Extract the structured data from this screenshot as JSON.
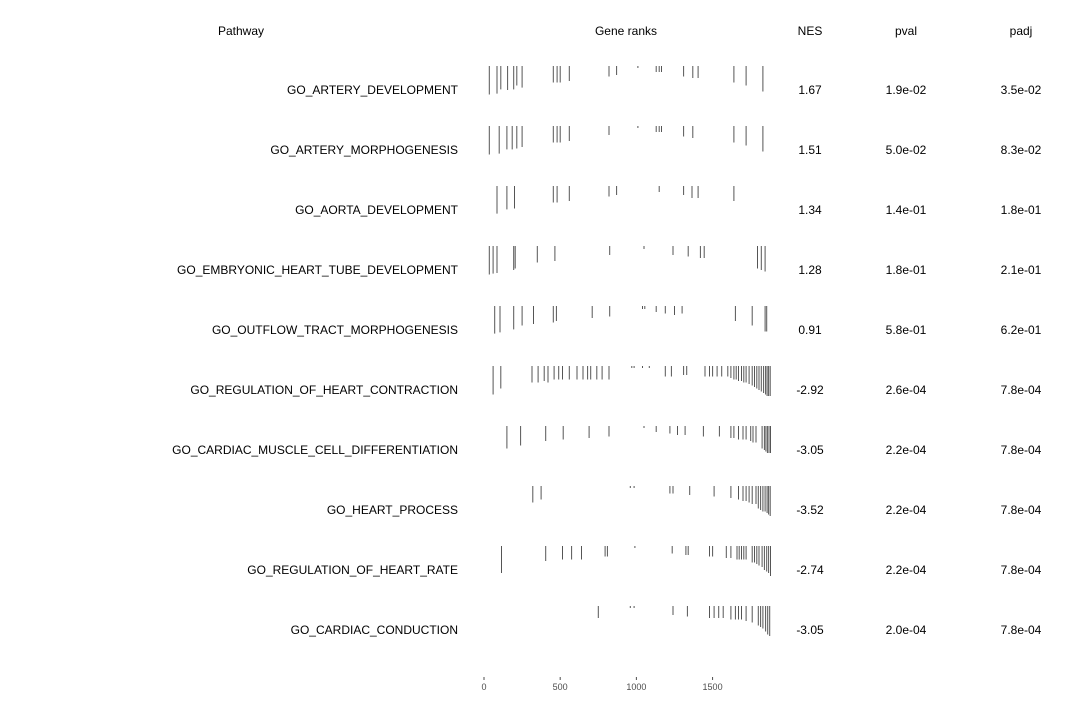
{
  "headers": {
    "pathway": "Pathway",
    "gene_ranks": "Gene ranks",
    "nes": "NES",
    "pval": "pval",
    "padj": "padj"
  },
  "chart_data": {
    "type": "table",
    "xlim": [
      0,
      1890
    ],
    "x_ticks": [
      0,
      500,
      1000,
      1500
    ],
    "x_tick_labels": [
      "0",
      "500",
      "1000",
      "1500"
    ],
    "grid": false,
    "rows": [
      {
        "pathway": "GO_ARTERY_DEVELOPMENT",
        "nes": "1.67",
        "pval": "1.9e-02",
        "padj": "3.5e-02",
        "ranks": [
          [
            35,
            0.95
          ],
          [
            85,
            0.92
          ],
          [
            110,
            0.78
          ],
          [
            155,
            0.8
          ],
          [
            195,
            0.78
          ],
          [
            215,
            0.65
          ],
          [
            250,
            0.72
          ],
          [
            455,
            0.55
          ],
          [
            480,
            0.55
          ],
          [
            500,
            0.55
          ],
          [
            560,
            0.5
          ],
          [
            820,
            0.35
          ],
          [
            870,
            0.3
          ],
          [
            1010,
            0.05
          ],
          [
            1130,
            0.2
          ],
          [
            1150,
            0.2
          ],
          [
            1165,
            0.2
          ],
          [
            1310,
            0.35
          ],
          [
            1370,
            0.4
          ],
          [
            1405,
            0.4
          ],
          [
            1640,
            0.55
          ],
          [
            1720,
            0.65
          ],
          [
            1830,
            0.85
          ]
        ]
      },
      {
        "pathway": "GO_ARTERY_MORPHOGENESIS",
        "nes": "1.51",
        "pval": "5.0e-02",
        "padj": "8.3e-02",
        "ranks": [
          [
            35,
            0.95
          ],
          [
            100,
            0.92
          ],
          [
            150,
            0.78
          ],
          [
            185,
            0.78
          ],
          [
            215,
            0.75
          ],
          [
            250,
            0.7
          ],
          [
            455,
            0.55
          ],
          [
            480,
            0.55
          ],
          [
            500,
            0.55
          ],
          [
            560,
            0.5
          ],
          [
            820,
            0.3
          ],
          [
            1010,
            0.05
          ],
          [
            1130,
            0.2
          ],
          [
            1150,
            0.2
          ],
          [
            1165,
            0.2
          ],
          [
            1310,
            0.35
          ],
          [
            1370,
            0.4
          ],
          [
            1640,
            0.55
          ],
          [
            1720,
            0.65
          ],
          [
            1830,
            0.85
          ]
        ]
      },
      {
        "pathway": "GO_AORTA_DEVELOPMENT",
        "nes": "1.34",
        "pval": "1.4e-01",
        "padj": "1.8e-01",
        "ranks": [
          [
            85,
            0.92
          ],
          [
            150,
            0.78
          ],
          [
            200,
            0.75
          ],
          [
            455,
            0.55
          ],
          [
            480,
            0.55
          ],
          [
            560,
            0.5
          ],
          [
            820,
            0.35
          ],
          [
            870,
            0.3
          ],
          [
            1150,
            0.2
          ],
          [
            1310,
            0.3
          ],
          [
            1365,
            0.4
          ],
          [
            1405,
            0.4
          ],
          [
            1640,
            0.5
          ]
        ]
      },
      {
        "pathway": "GO_EMBRYONIC_HEART_TUBE_DEVELOPMENT",
        "nes": "1.28",
        "pval": "1.8e-01",
        "padj": "2.1e-01",
        "ranks": [
          [
            35,
            0.95
          ],
          [
            60,
            0.92
          ],
          [
            85,
            0.9
          ],
          [
            195,
            0.8
          ],
          [
            205,
            0.75
          ],
          [
            350,
            0.55
          ],
          [
            465,
            0.5
          ],
          [
            825,
            0.3
          ],
          [
            1050,
            0.1
          ],
          [
            1240,
            0.3
          ],
          [
            1340,
            0.35
          ],
          [
            1420,
            0.4
          ],
          [
            1445,
            0.4
          ],
          [
            1795,
            0.75
          ],
          [
            1820,
            0.8
          ],
          [
            1845,
            0.85
          ]
        ]
      },
      {
        "pathway": "GO_OUTFLOW_TRACT_MORPHOGENESIS",
        "nes": "0.91",
        "pval": "5.8e-01",
        "padj": "6.2e-01",
        "ranks": [
          [
            70,
            0.92
          ],
          [
            105,
            0.88
          ],
          [
            195,
            0.78
          ],
          [
            250,
            0.65
          ],
          [
            325,
            0.6
          ],
          [
            455,
            0.55
          ],
          [
            475,
            0.5
          ],
          [
            710,
            0.4
          ],
          [
            825,
            0.35
          ],
          [
            1040,
            0.1
          ],
          [
            1055,
            0.1
          ],
          [
            1130,
            0.2
          ],
          [
            1190,
            0.25
          ],
          [
            1250,
            0.3
          ],
          [
            1300,
            0.25
          ],
          [
            1650,
            0.5
          ],
          [
            1760,
            0.65
          ],
          [
            1845,
            0.85
          ],
          [
            1855,
            0.85
          ]
        ]
      },
      {
        "pathway": "GO_REGULATION_OF_HEART_CONTRACTION",
        "nes": "-2.92",
        "pval": "2.6e-04",
        "padj": "7.8e-04",
        "ranks": [
          [
            60,
            0.95
          ],
          [
            110,
            0.75
          ],
          [
            315,
            0.55
          ],
          [
            355,
            0.55
          ],
          [
            395,
            0.5
          ],
          [
            420,
            0.55
          ],
          [
            460,
            0.45
          ],
          [
            490,
            0.45
          ],
          [
            515,
            0.45
          ],
          [
            560,
            0.45
          ],
          [
            610,
            0.45
          ],
          [
            650,
            0.45
          ],
          [
            680,
            0.45
          ],
          [
            700,
            0.45
          ],
          [
            740,
            0.45
          ],
          [
            775,
            0.45
          ],
          [
            820,
            0.45
          ],
          [
            970,
            0.05
          ],
          [
            985,
            0.05
          ],
          [
            1040,
            0.05
          ],
          [
            1085,
            0.05
          ],
          [
            1190,
            0.35
          ],
          [
            1230,
            0.35
          ],
          [
            1310,
            0.3
          ],
          [
            1330,
            0.3
          ],
          [
            1450,
            0.35
          ],
          [
            1480,
            0.35
          ],
          [
            1500,
            0.35
          ],
          [
            1530,
            0.35
          ],
          [
            1560,
            0.35
          ],
          [
            1600,
            0.35
          ],
          [
            1620,
            0.4
          ],
          [
            1640,
            0.45
          ],
          [
            1655,
            0.45
          ],
          [
            1670,
            0.5
          ],
          [
            1690,
            0.5
          ],
          [
            1705,
            0.55
          ],
          [
            1720,
            0.55
          ],
          [
            1740,
            0.6
          ],
          [
            1760,
            0.65
          ],
          [
            1775,
            0.7
          ],
          [
            1790,
            0.75
          ],
          [
            1805,
            0.8
          ],
          [
            1820,
            0.85
          ],
          [
            1835,
            0.9
          ],
          [
            1848,
            0.95
          ],
          [
            1858,
            1.0
          ],
          [
            1868,
            1.0
          ],
          [
            1878,
            1.0
          ]
        ]
      },
      {
        "pathway": "GO_CARDIAC_MUSCLE_CELL_DIFFERENTIATION",
        "nes": "-3.05",
        "pval": "2.2e-04",
        "padj": "7.8e-04",
        "ranks": [
          [
            150,
            0.75
          ],
          [
            240,
            0.65
          ],
          [
            405,
            0.5
          ],
          [
            520,
            0.45
          ],
          [
            690,
            0.4
          ],
          [
            820,
            0.35
          ],
          [
            1050,
            0.05
          ],
          [
            1130,
            0.2
          ],
          [
            1220,
            0.25
          ],
          [
            1270,
            0.3
          ],
          [
            1320,
            0.3
          ],
          [
            1440,
            0.35
          ],
          [
            1545,
            0.35
          ],
          [
            1620,
            0.4
          ],
          [
            1640,
            0.4
          ],
          [
            1670,
            0.45
          ],
          [
            1700,
            0.45
          ],
          [
            1720,
            0.45
          ],
          [
            1750,
            0.5
          ],
          [
            1765,
            0.55
          ],
          [
            1785,
            0.55
          ],
          [
            1825,
            0.75
          ],
          [
            1840,
            0.8
          ],
          [
            1850,
            0.85
          ],
          [
            1860,
            0.9
          ],
          [
            1870,
            0.9
          ],
          [
            1880,
            0.9
          ]
        ]
      },
      {
        "pathway": "GO_HEART_PROCESS",
        "nes": "-3.52",
        "pval": "2.2e-04",
        "padj": "7.8e-04",
        "ranks": [
          [
            320,
            0.55
          ],
          [
            375,
            0.45
          ],
          [
            960,
            0.05
          ],
          [
            985,
            0.05
          ],
          [
            1220,
            0.25
          ],
          [
            1240,
            0.25
          ],
          [
            1350,
            0.3
          ],
          [
            1510,
            0.35
          ],
          [
            1620,
            0.4
          ],
          [
            1670,
            0.45
          ],
          [
            1700,
            0.5
          ],
          [
            1720,
            0.5
          ],
          [
            1740,
            0.55
          ],
          [
            1760,
            0.6
          ],
          [
            1785,
            0.6
          ],
          [
            1800,
            0.75
          ],
          [
            1815,
            0.8
          ],
          [
            1830,
            0.85
          ],
          [
            1845,
            0.85
          ],
          [
            1858,
            0.9
          ],
          [
            1868,
            0.95
          ],
          [
            1878,
            1.0
          ]
        ]
      },
      {
        "pathway": "GO_REGULATION_OF_HEART_RATE",
        "nes": "-2.74",
        "pval": "2.2e-04",
        "padj": "7.8e-04",
        "ranks": [
          [
            115,
            0.9
          ],
          [
            405,
            0.5
          ],
          [
            515,
            0.45
          ],
          [
            575,
            0.45
          ],
          [
            640,
            0.45
          ],
          [
            795,
            0.35
          ],
          [
            810,
            0.35
          ],
          [
            990,
            0.05
          ],
          [
            1235,
            0.25
          ],
          [
            1325,
            0.3
          ],
          [
            1340,
            0.3
          ],
          [
            1480,
            0.35
          ],
          [
            1500,
            0.35
          ],
          [
            1590,
            0.4
          ],
          [
            1620,
            0.4
          ],
          [
            1660,
            0.45
          ],
          [
            1675,
            0.45
          ],
          [
            1690,
            0.45
          ],
          [
            1705,
            0.45
          ],
          [
            1720,
            0.45
          ],
          [
            1760,
            0.55
          ],
          [
            1775,
            0.55
          ],
          [
            1790,
            0.6
          ],
          [
            1805,
            0.65
          ],
          [
            1825,
            0.7
          ],
          [
            1840,
            0.8
          ],
          [
            1855,
            0.85
          ],
          [
            1868,
            0.9
          ],
          [
            1880,
            1.0
          ]
        ]
      },
      {
        "pathway": "GO_CARDIAC_CONDUCTION",
        "nes": "-3.05",
        "pval": "2.0e-04",
        "padj": "7.8e-04",
        "ranks": [
          [
            750,
            0.4
          ],
          [
            960,
            0.05
          ],
          [
            985,
            0.05
          ],
          [
            1240,
            0.3
          ],
          [
            1335,
            0.35
          ],
          [
            1480,
            0.4
          ],
          [
            1510,
            0.4
          ],
          [
            1540,
            0.4
          ],
          [
            1570,
            0.4
          ],
          [
            1620,
            0.45
          ],
          [
            1650,
            0.45
          ],
          [
            1670,
            0.45
          ],
          [
            1690,
            0.45
          ],
          [
            1720,
            0.5
          ],
          [
            1760,
            0.55
          ],
          [
            1800,
            0.65
          ],
          [
            1815,
            0.7
          ],
          [
            1830,
            0.75
          ],
          [
            1848,
            0.85
          ],
          [
            1862,
            0.95
          ],
          [
            1875,
            1.0
          ]
        ]
      }
    ]
  }
}
